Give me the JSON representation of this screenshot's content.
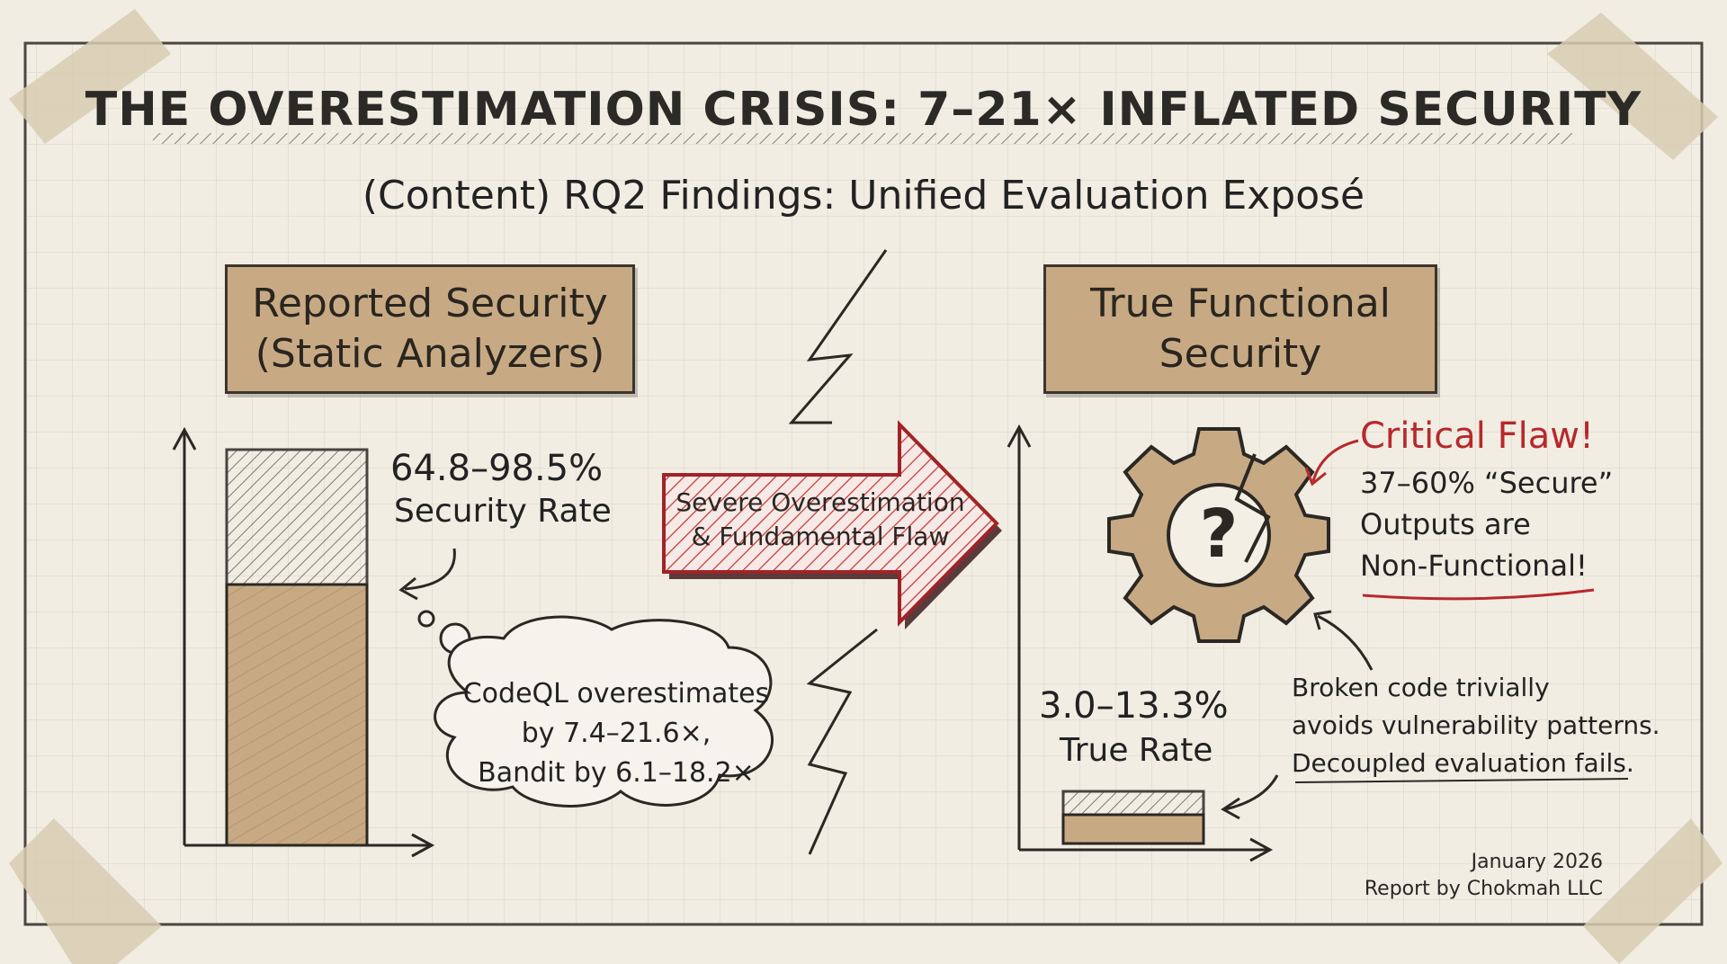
{
  "header": {
    "title": "THE OVERESTIMATION CRISIS: 7–21× INFLATED SECURITY",
    "subtitle": "(Content) RQ2 Findings: Unified Evaluation Exposé"
  },
  "left_panel": {
    "label_line1": "Reported Security",
    "label_line2": "(Static Analyzers)",
    "rate_value": "64.8–98.5%",
    "rate_label": "Security Rate",
    "cloud_line1": "CodeQL overestimates",
    "cloud_line2": "by 7.4–21.6×,",
    "cloud_line3": "Bandit by 6.1–18.2×"
  },
  "center_arrow": {
    "line1": "Severe Overestimation",
    "line2": "& Fundamental Flaw"
  },
  "right_panel": {
    "label_line1": "True Functional",
    "label_line2": "Security",
    "critical_title": "Critical Flaw!",
    "critical_line1": "37–60% “Secure”",
    "critical_line2": "Outputs are",
    "critical_line3": "Non-Functional!",
    "rate_value": "3.0–13.3%",
    "rate_label": "True Rate",
    "note_line1": "Broken code trivially",
    "note_line2": "avoids vulnerability patterns.",
    "note_line3": "Decoupled evaluation fails."
  },
  "footer": {
    "date": "January 2026",
    "credit": "Report by Chokmah LLC"
  },
  "colors": {
    "background": "#f1ede3",
    "tan": "#c7aa84",
    "ink": "#262421",
    "accent_red": "#b8282b"
  },
  "icons": [
    "gear-question-icon",
    "lightning-bolt-icon",
    "right-arrow-icon",
    "thought-cloud-icon"
  ]
}
